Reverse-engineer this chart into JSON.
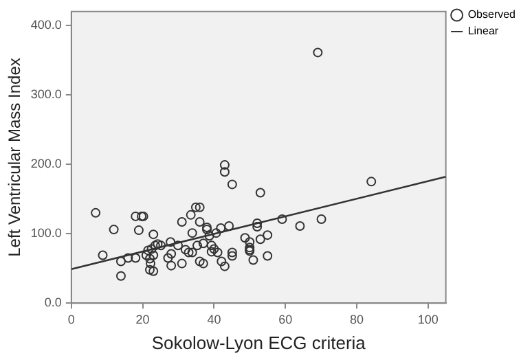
{
  "chart_data": {
    "type": "scatter",
    "xlabel": "Sokolow-Lyon ECG criteria",
    "ylabel": "Left Ventricular Mass Index",
    "xlim": [
      0,
      105
    ],
    "xticks": [
      0,
      20,
      40,
      60,
      80,
      100
    ],
    "ylim": [
      0,
      420
    ],
    "yticks": [
      {
        "value": 0,
        "label": "0.0"
      },
      {
        "value": 100,
        "label": "100.0"
      },
      {
        "value": 200,
        "label": "200.0"
      },
      {
        "value": 300,
        "label": "300.0"
      },
      {
        "value": 400,
        "label": "400.0"
      }
    ],
    "grid": false,
    "legend": "top right",
    "marker": "circle",
    "series": [
      {
        "name": "Observed",
        "color": "#333333",
        "x": [
          6.8,
          8.8,
          11.9,
          13.9,
          13.9,
          15.9,
          18,
          18,
          18.9,
          19.7,
          20.2,
          21,
          21.5,
          22,
          22,
          22.2,
          22.5,
          23,
          23,
          23,
          23.5,
          24.2,
          25.1,
          27.1,
          27.8,
          28,
          28,
          29.9,
          31,
          31,
          32,
          32.9,
          33.9,
          33.5,
          33.9,
          34.9,
          36,
          36,
          35.3,
          36,
          37,
          37,
          38,
          38,
          38.7,
          39.3,
          39.3,
          40,
          40.6,
          41,
          41.9,
          42.1,
          43,
          43,
          43,
          44.2,
          45.1,
          45.1,
          45.1,
          48.7,
          50,
          50,
          50,
          50,
          51,
          52.1,
          52.1,
          53,
          53,
          55,
          55,
          59.1,
          64.1,
          69.1,
          70.1,
          84.1
        ],
        "values": [
          130,
          69,
          106,
          60,
          39,
          65,
          65,
          125,
          105,
          125,
          125,
          69,
          76,
          64,
          48,
          57,
          78,
          99,
          46,
          69,
          83,
          85,
          83,
          65,
          88,
          71,
          54,
          83,
          117,
          57,
          77,
          73,
          73,
          127,
          101,
          138,
          138,
          117,
          83,
          60,
          57,
          86,
          109,
          106,
          97,
          83,
          74,
          78,
          101,
          73,
          108,
          60,
          199,
          189,
          53,
          111,
          171,
          73,
          68,
          94,
          88,
          80,
          75,
          77,
          62,
          115,
          110,
          92,
          159,
          98,
          68,
          121,
          111,
          361,
          121,
          175
        ]
      },
      {
        "name": "Linear",
        "type": "line",
        "color": "#333333",
        "marker": "none",
        "x": [
          0,
          105
        ],
        "values": [
          49,
          182
        ]
      }
    ]
  }
}
